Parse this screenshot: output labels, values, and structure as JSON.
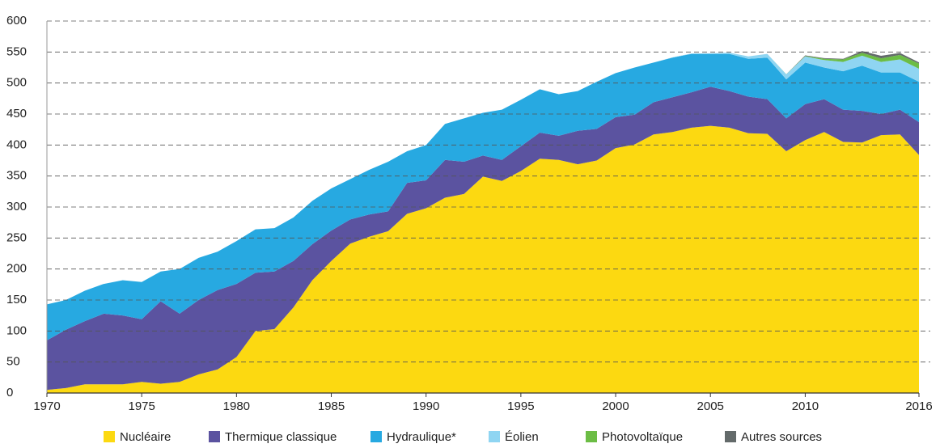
{
  "chart_data": {
    "type": "area",
    "x": [
      1970,
      1971,
      1972,
      1973,
      1974,
      1975,
      1976,
      1977,
      1978,
      1979,
      1980,
      1981,
      1982,
      1983,
      1984,
      1985,
      1986,
      1987,
      1988,
      1989,
      1990,
      1991,
      1992,
      1993,
      1994,
      1995,
      1996,
      1997,
      1998,
      1999,
      2000,
      2001,
      2002,
      2003,
      2004,
      2005,
      2006,
      2007,
      2008,
      2009,
      2010,
      2011,
      2012,
      2013,
      2014,
      2015,
      2016
    ],
    "series": [
      {
        "name": "Nucléaire",
        "color": "#fcd911",
        "values": [
          5,
          8,
          14,
          14,
          14,
          18,
          15,
          18,
          30,
          38,
          58,
          100,
          103,
          138,
          182,
          213,
          241,
          252,
          261,
          289,
          298,
          315,
          321,
          349,
          342,
          358,
          378,
          376,
          369,
          375,
          395,
          401,
          417,
          421,
          428,
          431,
          428,
          419,
          418,
          390,
          408,
          421,
          405,
          404,
          416,
          417,
          384
        ]
      },
      {
        "name": "Thermique classique",
        "color": "#5b53a0",
        "values": [
          80,
          94,
          102,
          114,
          111,
          101,
          133,
          110,
          120,
          128,
          118,
          94,
          93,
          75,
          58,
          49,
          39,
          36,
          32,
          50,
          45,
          61,
          52,
          34,
          34,
          40,
          42,
          39,
          54,
          51,
          50,
          48,
          52,
          56,
          57,
          63,
          59,
          59,
          56,
          53,
          58,
          53,
          52,
          51,
          34,
          40,
          53
        ]
      },
      {
        "name": "Hydraulique*",
        "color": "#27a9e1",
        "values": [
          58,
          48,
          49,
          48,
          57,
          60,
          48,
          72,
          68,
          62,
          69,
          70,
          70,
          70,
          70,
          68,
          65,
          72,
          80,
          51,
          57,
          58,
          70,
          69,
          81,
          75,
          70,
          67,
          64,
          76,
          71,
          76,
          64,
          64,
          62,
          53,
          60,
          61,
          67,
          63,
          67,
          51,
          62,
          73,
          67,
          60,
          65
        ]
      },
      {
        "name": "Éolien",
        "color": "#8fd5f2",
        "values": [
          0,
          0,
          0,
          0,
          0,
          0,
          0,
          0,
          0,
          0,
          0,
          0,
          0,
          0,
          0,
          0,
          0,
          0,
          0,
          0,
          0,
          0,
          0,
          0,
          0,
          0,
          0,
          0,
          0,
          0,
          0,
          0,
          0,
          0.4,
          0.6,
          1,
          2,
          4,
          6,
          8,
          10,
          12,
          15,
          16,
          17,
          21,
          21
        ]
      },
      {
        "name": "Photovoltaïque",
        "color": "#6cbd45",
        "values": [
          0,
          0,
          0,
          0,
          0,
          0,
          0,
          0,
          0,
          0,
          0,
          0,
          0,
          0,
          0,
          0,
          0,
          0,
          0,
          0,
          0,
          0,
          0,
          0,
          0,
          0,
          0,
          0,
          0,
          0,
          0,
          0,
          0,
          0,
          0,
          0,
          0,
          0,
          0,
          0.2,
          0.6,
          2.1,
          4,
          4.6,
          5.9,
          7.4,
          8.3
        ]
      },
      {
        "name": "Autres sources",
        "color": "#636a6a",
        "values": [
          0,
          0,
          0,
          0,
          0,
          0,
          0,
          0,
          0,
          0,
          0,
          0,
          0,
          0,
          0,
          0,
          0,
          0,
          0,
          0,
          0,
          0,
          0,
          0,
          0,
          0,
          0,
          0,
          0,
          0,
          0,
          0,
          0,
          0,
          0,
          0,
          0,
          0,
          0,
          0,
          1,
          1,
          1,
          3,
          4,
          3,
          2
        ]
      }
    ],
    "xlim": [
      1970,
      2016
    ],
    "xticks": [
      1970,
      1975,
      1980,
      1985,
      1990,
      1995,
      2000,
      2005,
      2010,
      2016
    ],
    "ylim": [
      0,
      600
    ],
    "yticks": [
      0,
      50,
      100,
      150,
      200,
      250,
      300,
      350,
      400,
      450,
      500,
      550,
      600
    ],
    "grid": true,
    "stacked": true,
    "legend": "bottom"
  }
}
